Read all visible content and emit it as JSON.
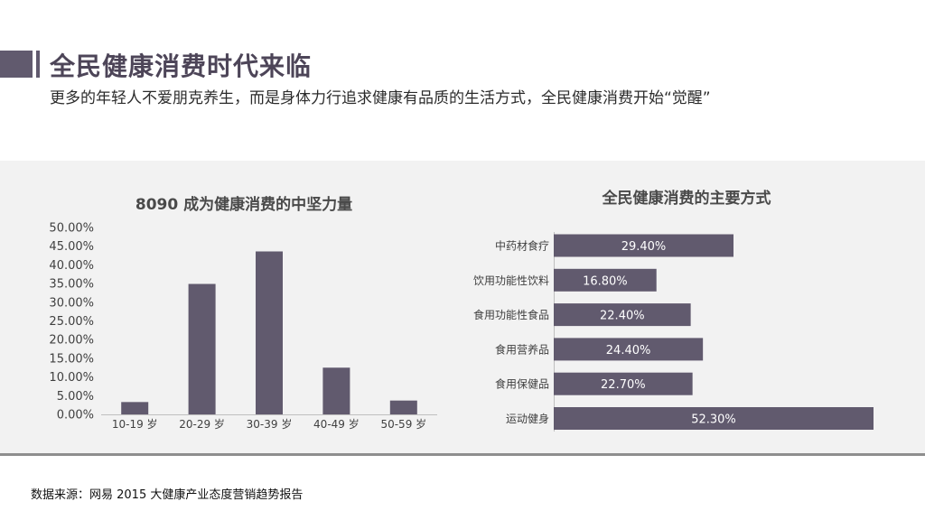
{
  "header": {
    "title": "全民健康消费时代来临",
    "subtitle": "更多的年轻人不爱朋克养生，而是身体力行追求健康有品质的生活方式，全民健康消费开始“觉醒”"
  },
  "colors": {
    "bar": "#615a6e",
    "panel": "#f2f2f2",
    "accent": "#615a6e"
  },
  "chart_data": [
    {
      "type": "bar",
      "title": "8090 成为健康消费的中坚力量",
      "categories": [
        "10-19 岁",
        "20-29 岁",
        "30-39 岁",
        "40-49 岁",
        "50-59 岁"
      ],
      "values": [
        3.3,
        34.9,
        43.6,
        12.5,
        3.7
      ],
      "yticks": [
        "0.00%",
        "5.00%",
        "10.00%",
        "15.00%",
        "20.00%",
        "25.00%",
        "30.00%",
        "35.00%",
        "40.00%",
        "45.00%",
        "50.00%"
      ],
      "ylim": [
        0,
        50
      ],
      "grid": false
    },
    {
      "type": "bar",
      "orientation": "horizontal",
      "title": "全民健康消费的主要方式",
      "categories": [
        "中药材食疗",
        "饮用功能性饮料",
        "食用功能性食品",
        "食用营养品",
        "食用保健品",
        "运动健身"
      ],
      "values": [
        29.4,
        16.8,
        22.4,
        24.4,
        22.7,
        52.3
      ],
      "data_labels": [
        "29.40%",
        "16.80%",
        "22.40%",
        "24.40%",
        "22.70%",
        "52.30%"
      ]
    }
  ],
  "footer": {
    "source": "数据来源：网易 2015 大健康产业态度营销趋势报告"
  }
}
